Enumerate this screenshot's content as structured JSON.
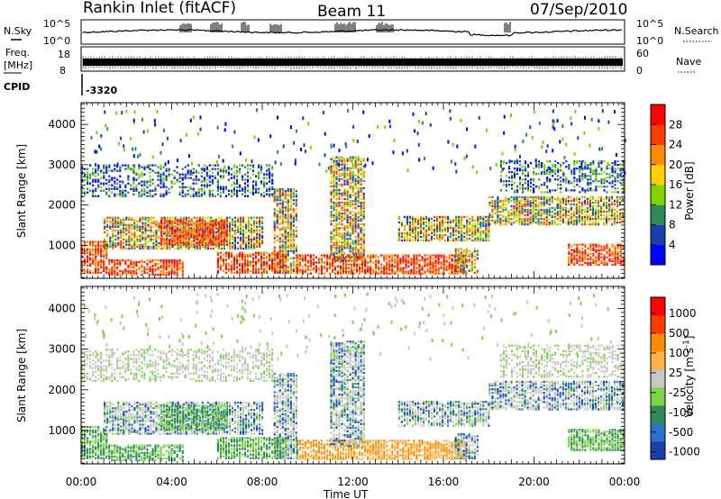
{
  "header": {
    "station": "Rankin Inlet (fitACF)",
    "beam": "Beam 11",
    "date": "07/Sep/2010"
  },
  "chart_data": [
    {
      "type": "line",
      "name": "noise-panel",
      "left_label": "N.Sky",
      "right_label": "N.Search",
      "yticks_left": [
        "10^5",
        "10^0"
      ],
      "yticks_right": [
        "10^5",
        "10^0"
      ],
      "grid": false
    },
    {
      "type": "line",
      "name": "frequency-panel",
      "left_label_1": "Freq.",
      "left_label_2": "[MHz]",
      "right_label": "Nave",
      "yticks_left": [
        "18",
        "8"
      ],
      "yticks_right": [
        "60",
        "0"
      ],
      "grid": false
    },
    {
      "type": "table",
      "name": "cpid-row",
      "label": "CPID",
      "values": [
        "-3320"
      ]
    },
    {
      "type": "heatmap",
      "name": "power",
      "ylabel": "Slant Range [km]",
      "xlabel": "Time UT",
      "xticks": [
        "00:00",
        "04:00",
        "08:00",
        "12:00",
        "16:00",
        "20:00",
        "00:00"
      ],
      "xlim_hours": [
        0,
        24
      ],
      "yticks": [
        "1000",
        "2000",
        "3000",
        "4000"
      ],
      "ylim": [
        180,
        4540
      ],
      "colorbar": {
        "label": "Power [dB]",
        "tick_labels": [
          "4",
          "8",
          "12",
          "16",
          "20",
          "24",
          "28"
        ],
        "colors": [
          "#0000ff",
          "#1c3fb0",
          "#2e8b57",
          "#7fd400",
          "#ffd000",
          "#ff8c00",
          "#ff3c00",
          "#ff0000"
        ]
      }
    },
    {
      "type": "heatmap",
      "name": "velocity",
      "ylabel": "Slant Range [km]",
      "xlabel": "Time UT",
      "xticks": [
        "00:00",
        "04:00",
        "08:00",
        "12:00",
        "16:00",
        "20:00",
        "00:00"
      ],
      "xlim_hours": [
        0,
        24
      ],
      "yticks": [
        "1000",
        "2000",
        "3000",
        "4000"
      ],
      "ylim": [
        180,
        4540
      ],
      "colorbar": {
        "label": "Velocity [m s",
        "label_superscript": "-1",
        "label_close": "]",
        "tick_labels": [
          "1000",
          "500",
          "100",
          "25",
          "-25",
          "-100",
          "-500",
          "-1000"
        ],
        "colors": [
          "#1c3fb0",
          "#2f6fd0",
          "#2e8b57",
          "#7fd44a",
          "#c8c8c8",
          "#ffb347",
          "#ff8c00",
          "#ff3c00",
          "#ff0000"
        ]
      }
    }
  ]
}
